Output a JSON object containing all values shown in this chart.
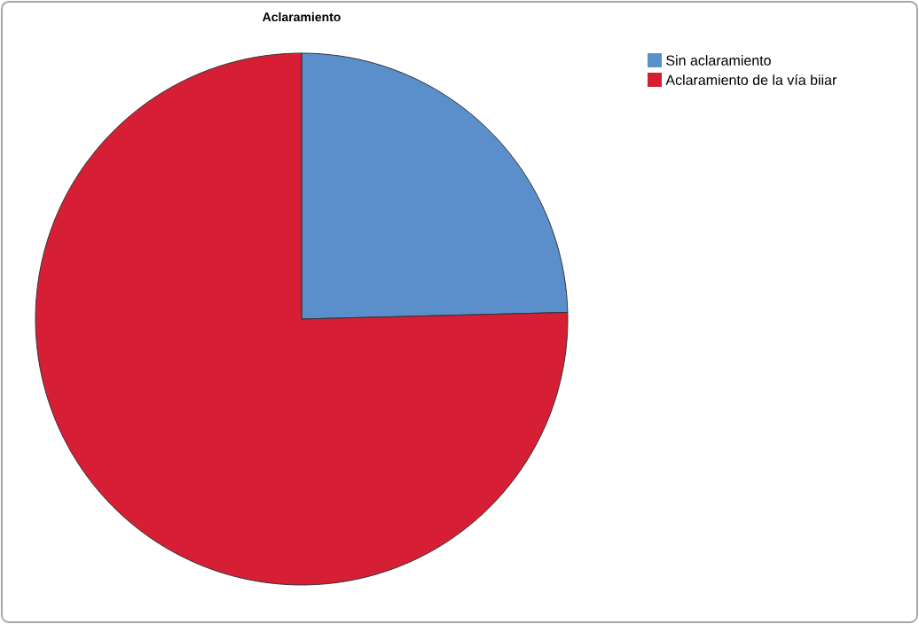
{
  "chart_data": {
    "type": "pie",
    "title": "Aclaramiento",
    "categories": [
      "Sin aclaramiento",
      "Aclaramiento de la vía biiar"
    ],
    "values": [
      24.6,
      75.4
    ],
    "colors": [
      "#5b8fcc",
      "#d61f35"
    ],
    "legend": "top right"
  }
}
